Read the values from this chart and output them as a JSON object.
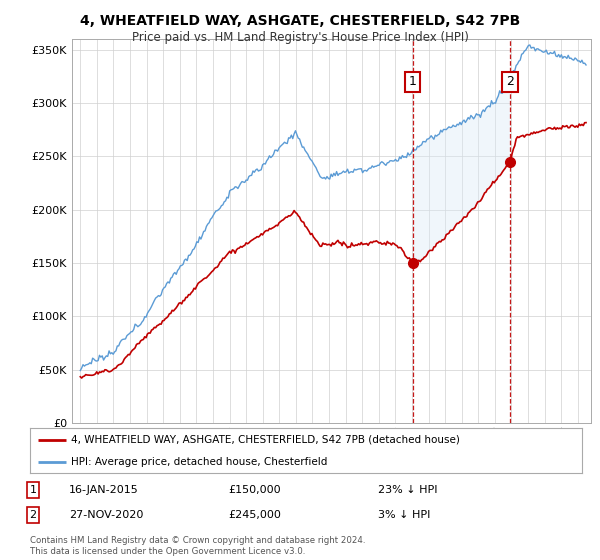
{
  "title": "4, WHEATFIELD WAY, ASHGATE, CHESTERFIELD, S42 7PB",
  "subtitle": "Price paid vs. HM Land Registry's House Price Index (HPI)",
  "legend_line1": "4, WHEATFIELD WAY, ASHGATE, CHESTERFIELD, S42 7PB (detached house)",
  "legend_line2": "HPI: Average price, detached house, Chesterfield",
  "annotation1_date": "16-JAN-2015",
  "annotation1_price": "£150,000",
  "annotation1_hpi": "23% ↓ HPI",
  "annotation2_date": "27-NOV-2020",
  "annotation2_price": "£245,000",
  "annotation2_hpi": "3% ↓ HPI",
  "footer": "Contains HM Land Registry data © Crown copyright and database right 2024.\nThis data is licensed under the Open Government Licence v3.0.",
  "ylim": [
    0,
    360000
  ],
  "yticks": [
    0,
    50000,
    100000,
    150000,
    200000,
    250000,
    300000,
    350000
  ],
  "ytick_labels": [
    "£0",
    "£50K",
    "£100K",
    "£150K",
    "£200K",
    "£250K",
    "£300K",
    "£350K"
  ],
  "hpi_color": "#5b9bd5",
  "price_color": "#c00000",
  "vline_color": "#c00000",
  "shade_color": "#daeaf7",
  "background_color": "#ffffff",
  "grid_color": "#d0d0d0",
  "point1_year": 2015.04,
  "point1_price": 150000,
  "point2_year": 2020.92,
  "point2_price": 245000,
  "xlim_left": 1994.5,
  "xlim_right": 2025.8
}
